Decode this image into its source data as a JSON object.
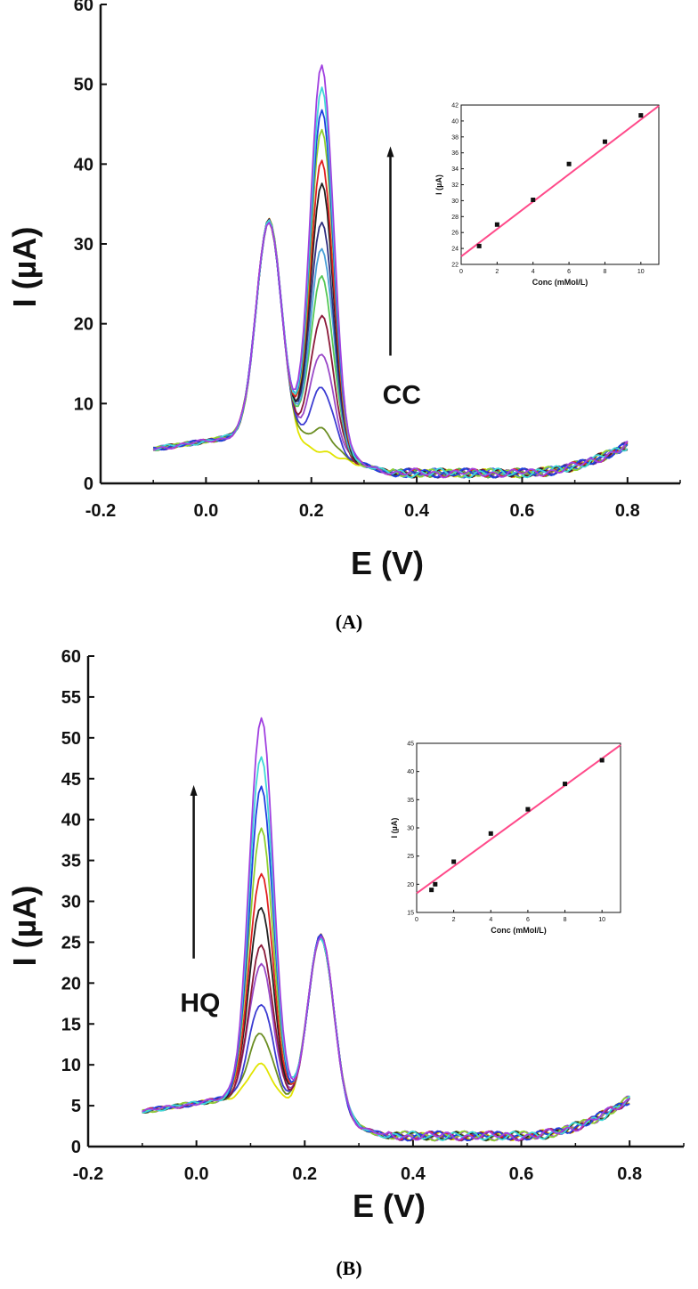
{
  "chart_data": [
    {
      "id": "A",
      "type": "line",
      "panel_label": "(A)",
      "xlabel": "E (V)",
      "ylabel": "I (µA)",
      "xlim": [
        -0.2,
        0.9
      ],
      "ylim": [
        0,
        60
      ],
      "xticks": [
        -0.2,
        0.0,
        0.2,
        0.4,
        0.6,
        0.8
      ],
      "xtick_labels": [
        "-0.2",
        "0.0",
        "0.2",
        "0.4",
        "0.6",
        "0.8"
      ],
      "yticks": [
        0,
        10,
        20,
        30,
        40,
        50,
        60
      ],
      "ytick_labels": [
        "0",
        "10",
        "20",
        "30",
        "40",
        "50",
        "60"
      ],
      "annotation": {
        "text": "CC",
        "arrow": "up",
        "arrow_x": 0.35,
        "arrow_y": [
          16,
          42
        ],
        "text_x": 0.335,
        "text_y": 10
      },
      "fixed_peak": {
        "E": 0.12,
        "height": 27
      },
      "varying_peak": {
        "E": 0.22
      },
      "tail_end": 3.5,
      "series": [
        {
          "name": "c1",
          "color": "#e1e400",
          "peak": 0
        },
        {
          "name": "c2",
          "color": "#6b8e23",
          "peak": 3
        },
        {
          "name": "c3",
          "color": "#3c3cd2",
          "peak": 8
        },
        {
          "name": "c4",
          "color": "#9a49c8",
          "peak": 12.5
        },
        {
          "name": "c5",
          "color": "#8b1a3a",
          "peak": 17
        },
        {
          "name": "c6",
          "color": "#55c855",
          "peak": 22
        },
        {
          "name": "c7",
          "color": "#4aa0d8",
          "peak": 25.5
        },
        {
          "name": "c8",
          "color": "#303080",
          "peak": 29
        },
        {
          "name": "c9",
          "color": "#222222",
          "peak": 33.5
        },
        {
          "name": "c10",
          "color": "#e02020",
          "peak": 36.5
        },
        {
          "name": "c11",
          "color": "#8fd030",
          "peak": 40.5
        },
        {
          "name": "c12",
          "color": "#2040e0",
          "peak": 43
        },
        {
          "name": "c13",
          "color": "#40d8d8",
          "peak": 45.5
        },
        {
          "name": "c14",
          "color": "#a040e0",
          "peak": 48.5
        }
      ],
      "inset": {
        "type": "scatter",
        "xlabel": "Conc (mMol/L)",
        "ylabel": "I (µA)",
        "xlim": [
          0,
          11
        ],
        "ylim": [
          22,
          42
        ],
        "xticks": [
          0,
          2,
          4,
          6,
          8,
          10
        ],
        "yticks": [
          22,
          24,
          26,
          28,
          30,
          32,
          34,
          36,
          38,
          40,
          42
        ],
        "points": {
          "x": [
            1,
            2,
            4,
            6,
            8,
            10
          ],
          "y": [
            24.3,
            27.0,
            30.1,
            34.6,
            37.4,
            40.7
          ]
        },
        "fit": {
          "color": "#ff4a8a",
          "x": [
            0,
            11
          ],
          "y": [
            23.0,
            41.9
          ]
        }
      }
    },
    {
      "id": "B",
      "type": "line",
      "panel_label": "(B)",
      "xlabel": "E (V)",
      "ylabel": "I (µA)",
      "xlim": [
        -0.2,
        0.9
      ],
      "ylim": [
        0,
        60
      ],
      "xticks": [
        -0.2,
        0.0,
        0.2,
        0.4,
        0.6,
        0.8
      ],
      "xtick_labels": [
        "-0.2",
        "0.0",
        "0.2",
        "0.4",
        "0.6",
        "0.8"
      ],
      "yticks": [
        0,
        5,
        10,
        15,
        20,
        25,
        30,
        35,
        40,
        45,
        50,
        55,
        60
      ],
      "ytick_labels": [
        "0",
        "5",
        "10",
        "15",
        "20",
        "25",
        "30",
        "35",
        "40",
        "45",
        "50",
        "55",
        "60"
      ],
      "annotation": {
        "text": "HQ",
        "arrow": "up",
        "arrow_x": -0.005,
        "arrow_y": [
          23,
          44
        ],
        "text_x": -0.03,
        "text_y": 16.5
      },
      "fixed_peak": {
        "E": 0.23,
        "height": 22
      },
      "varying_peak": {
        "E": 0.12
      },
      "tail_end": 4.5,
      "series": [
        {
          "name": "c1",
          "color": "#e1e400",
          "peak": 4
        },
        {
          "name": "c2",
          "color": "#6b8e23",
          "peak": 8
        },
        {
          "name": "c3",
          "color": "#3c3cd2",
          "peak": 11.5
        },
        {
          "name": "c4",
          "color": "#9a49c8",
          "peak": 16.5
        },
        {
          "name": "c5",
          "color": "#8b1a3a",
          "peak": 18.5
        },
        {
          "name": "c6",
          "color": "#222222",
          "peak": 23.5
        },
        {
          "name": "c7",
          "color": "#e02020",
          "peak": 27.5
        },
        {
          "name": "c8",
          "color": "#8fd030",
          "peak": 33
        },
        {
          "name": "c9",
          "color": "#2040e0",
          "peak": 38
        },
        {
          "name": "c10",
          "color": "#40d8d8",
          "peak": 42
        },
        {
          "name": "c11",
          "color": "#a040e0",
          "peak": 46.5
        }
      ],
      "inset": {
        "type": "scatter",
        "xlabel": "Conc (mMol/L)",
        "ylabel": "I (µA)",
        "xlim": [
          0,
          11
        ],
        "ylim": [
          15,
          45
        ],
        "xticks": [
          0,
          2,
          4,
          6,
          8,
          10
        ],
        "yticks": [
          15,
          20,
          25,
          30,
          35,
          40,
          45
        ],
        "points": {
          "x": [
            0.8,
            1,
            2,
            4,
            6,
            8,
            10
          ],
          "y": [
            19.0,
            20.0,
            24.0,
            29.0,
            33.3,
            37.8,
            42.0
          ]
        },
        "fit": {
          "color": "#ff4a8a",
          "x": [
            0,
            11
          ],
          "y": [
            18.4,
            44.7
          ]
        }
      }
    }
  ]
}
